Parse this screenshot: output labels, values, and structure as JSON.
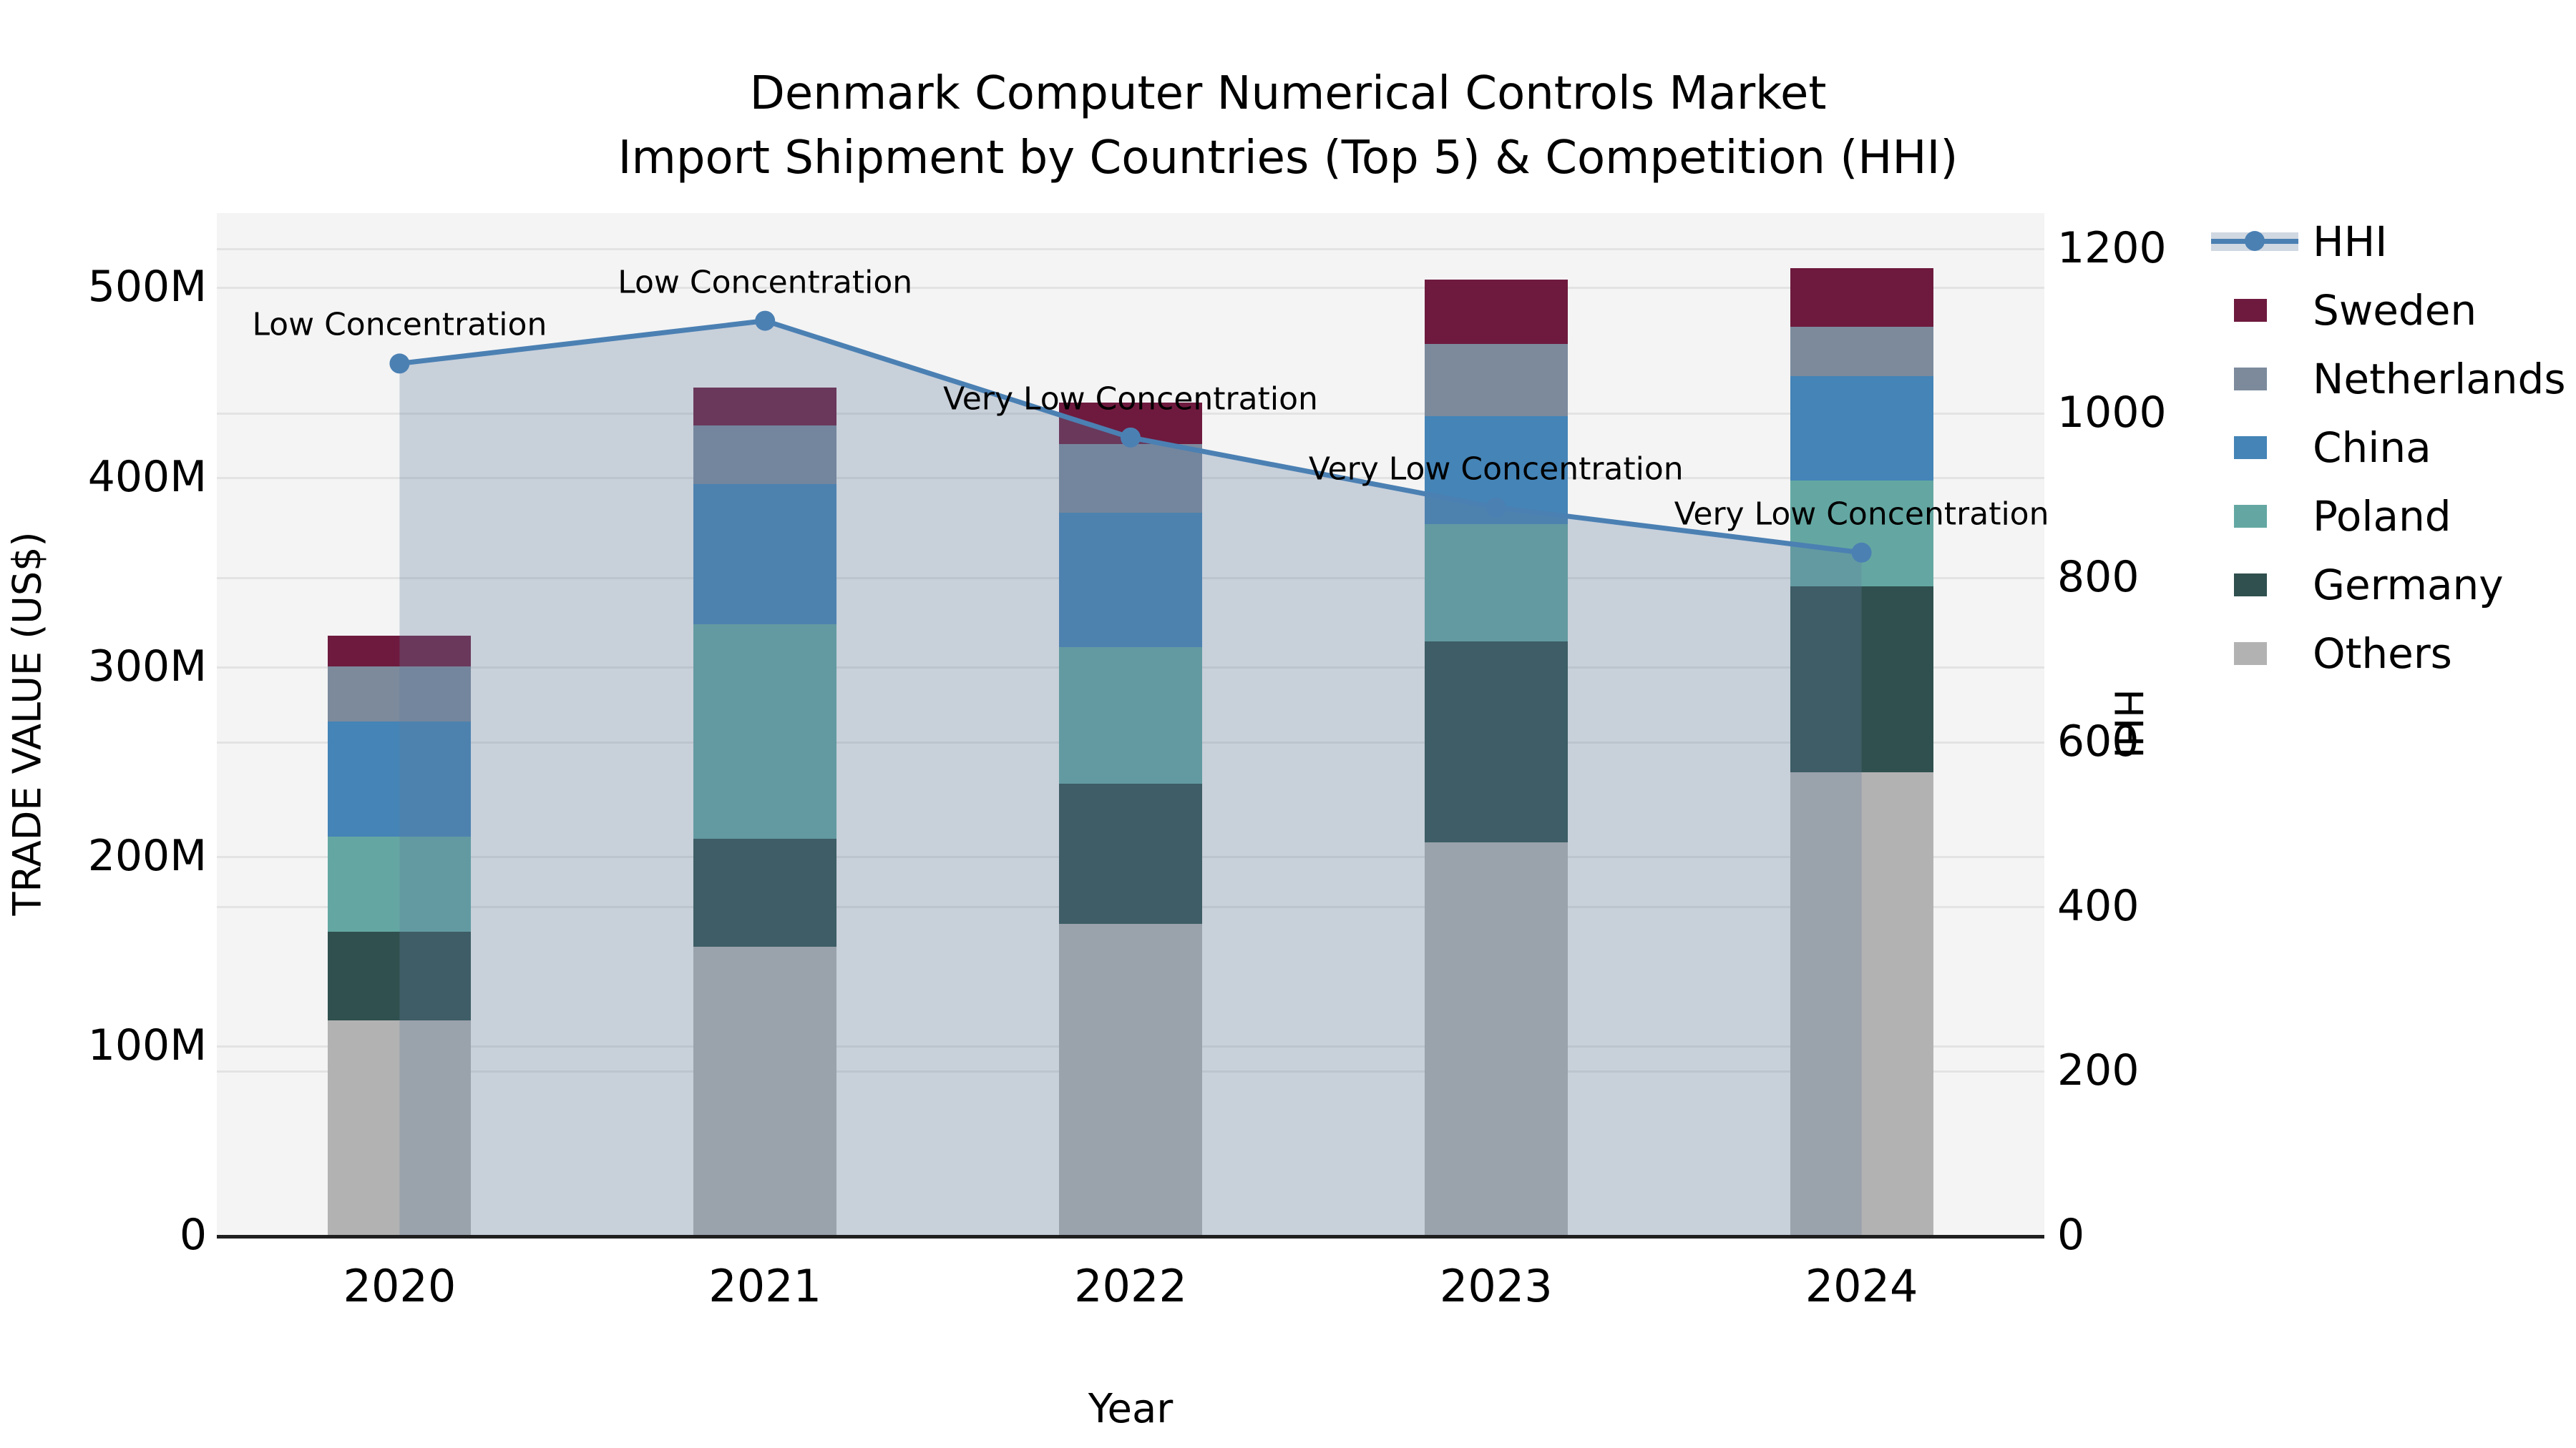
{
  "title": {
    "line1": "Denmark Computer Numerical Controls Market",
    "line2": "Import Shipment by Countries (Top 5) & Competition (HHI)"
  },
  "axes": {
    "y_left_label": "TRADE VALUE (US$)",
    "y_right_label": "HHI",
    "x_label": "Year",
    "y_left_ticks": [
      {
        "value": 0,
        "label": "0"
      },
      {
        "value": 100,
        "label": "100M"
      },
      {
        "value": 200,
        "label": "200M"
      },
      {
        "value": 300,
        "label": "300M"
      },
      {
        "value": 400,
        "label": "400M"
      },
      {
        "value": 500,
        "label": "500M"
      }
    ],
    "y_right_ticks": [
      {
        "value": 0,
        "label": "0"
      },
      {
        "value": 200,
        "label": "200"
      },
      {
        "value": 400,
        "label": "400"
      },
      {
        "value": 600,
        "label": "600"
      },
      {
        "value": 800,
        "label": "800"
      },
      {
        "value": 1000,
        "label": "1000"
      },
      {
        "value": 1200,
        "label": "1200"
      }
    ],
    "y_left_max": 539,
    "y_right_max": 1243
  },
  "colors": {
    "sweden": "#6E1A3E",
    "netherlands": "#7C8A9C",
    "china": "#4484B7",
    "poland": "#64A7A2",
    "germany": "#2F504E",
    "others": "#B2B2B2",
    "hhi_line": "#4B80B3",
    "hhi_area": "rgba(100,125,160,0.30)",
    "plot_bg": "#f4f4f4",
    "gridline": "#e3e3e3"
  },
  "chart_data": {
    "type": "bar+line",
    "title": "Denmark Computer Numerical Controls Market — Import Shipment by Countries (Top 5) & Competition (HHI)",
    "xlabel": "Year",
    "ylabel_left": "TRADE VALUE (US$)",
    "ylabel_right": "HHI",
    "ylim_left_millions": [
      0,
      539
    ],
    "ylim_right": [
      0,
      1243
    ],
    "grid": true,
    "legend_position": "right",
    "categories": [
      "2020",
      "2021",
      "2022",
      "2023",
      "2024"
    ],
    "bar_unit": "millions USD",
    "series": [
      {
        "name": "Others",
        "color_key": "others",
        "values": [
          113,
          152,
          164,
          207,
          244
        ]
      },
      {
        "name": "Germany",
        "color_key": "germany",
        "values": [
          47,
          57,
          74,
          106,
          98
        ]
      },
      {
        "name": "Poland",
        "color_key": "poland",
        "values": [
          50,
          113,
          72,
          62,
          56
        ]
      },
      {
        "name": "China",
        "color_key": "china",
        "values": [
          61,
          74,
          71,
          57,
          55
        ]
      },
      {
        "name": "Netherlands",
        "color_key": "netherlands",
        "values": [
          29,
          31,
          36,
          38,
          26
        ]
      },
      {
        "name": "Sweden",
        "color_key": "sweden",
        "values": [
          16,
          20,
          22,
          34,
          31
        ]
      }
    ],
    "line_series": {
      "name": "HHI",
      "axis": "right",
      "values": [
        1060,
        1112,
        970,
        885,
        830
      ],
      "annotations": [
        "Low Concentration",
        "Low Concentration",
        "Very Low Concentration",
        "Very Low Concentration",
        "Very Low Concentration"
      ]
    }
  },
  "legend": {
    "entries": [
      {
        "label": "HHI",
        "type": "line",
        "color_key": "hhi_line"
      },
      {
        "label": "Sweden",
        "type": "patch",
        "color_key": "sweden"
      },
      {
        "label": "Netherlands",
        "type": "patch",
        "color_key": "netherlands"
      },
      {
        "label": "China",
        "type": "patch",
        "color_key": "china"
      },
      {
        "label": "Poland",
        "type": "patch",
        "color_key": "poland"
      },
      {
        "label": "Germany",
        "type": "patch",
        "color_key": "germany"
      },
      {
        "label": "Others",
        "type": "patch",
        "color_key": "others"
      }
    ]
  }
}
